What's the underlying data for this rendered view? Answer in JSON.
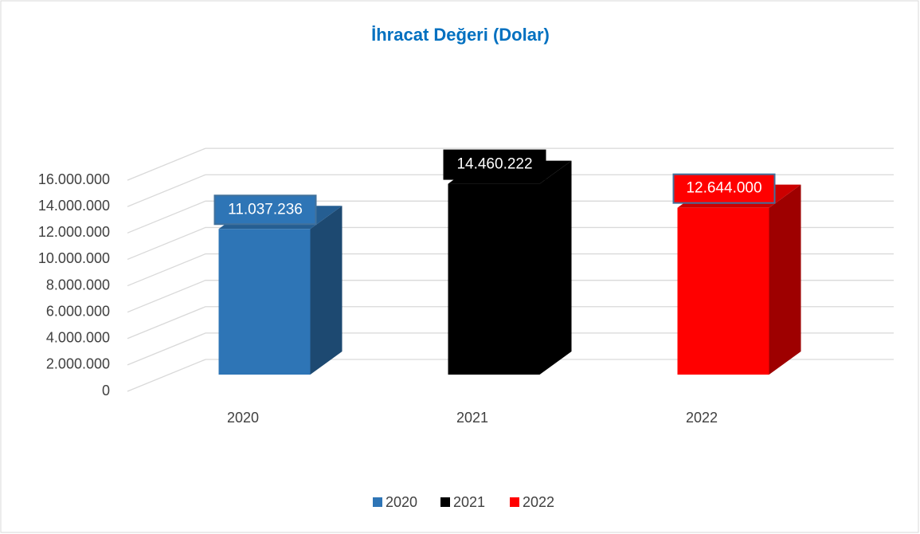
{
  "chart_data": {
    "type": "bar3d",
    "title": "İhracat Değeri (Dolar)",
    "categories": [
      "2020",
      "2021",
      "2022"
    ],
    "values": [
      11037236,
      14460222,
      12644000
    ],
    "value_labels": [
      "11.037.236",
      "14.460.222",
      "12.644.000"
    ],
    "colors": [
      "#2e75b6",
      "#000000",
      "#ff0000"
    ],
    "ylim": [
      0,
      18000000
    ],
    "yticks": [
      0,
      {
        "value": 2000000,
        "label": "2.000.000"
      },
      {
        "value": 4000000,
        "label": "4.000.000"
      },
      {
        "value": 6000000,
        "label": "6.000.000"
      },
      {
        "value": 8000000,
        "label": "8.000.000"
      },
      {
        "value": 10000000,
        "label": "10.000.000"
      },
      {
        "value": 12000000,
        "label": "12.000.000"
      },
      {
        "value": 14000000,
        "label": "14.000.000"
      },
      {
        "value": 16000000,
        "label": "16.000.000"
      }
    ],
    "grid": true,
    "legend": "bottom"
  }
}
